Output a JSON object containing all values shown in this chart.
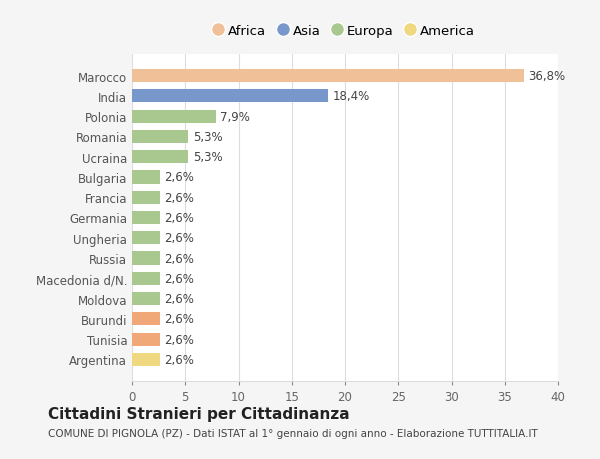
{
  "categories": [
    "Argentina",
    "Tunisia",
    "Burundi",
    "Moldova",
    "Macedonia d/N.",
    "Russia",
    "Ungheria",
    "Germania",
    "Francia",
    "Bulgaria",
    "Ucraina",
    "Romania",
    "Polonia",
    "India",
    "Marocco"
  ],
  "values": [
    2.6,
    2.6,
    2.6,
    2.6,
    2.6,
    2.6,
    2.6,
    2.6,
    2.6,
    2.6,
    5.3,
    5.3,
    7.9,
    18.4,
    36.8
  ],
  "labels": [
    "2,6%",
    "2,6%",
    "2,6%",
    "2,6%",
    "2,6%",
    "2,6%",
    "2,6%",
    "2,6%",
    "2,6%",
    "2,6%",
    "5,3%",
    "5,3%",
    "7,9%",
    "18,4%",
    "36,8%"
  ],
  "colors": [
    "#f0d880",
    "#f0a878",
    "#f0a878",
    "#a8c890",
    "#a8c890",
    "#a8c890",
    "#a8c890",
    "#a8c890",
    "#a8c890",
    "#a8c890",
    "#a8c890",
    "#a8c890",
    "#a8c890",
    "#7898cc",
    "#f0c098"
  ],
  "legend_labels": [
    "Africa",
    "Asia",
    "Europa",
    "America"
  ],
  "legend_colors": [
    "#f0c098",
    "#7898cc",
    "#a8c890",
    "#f0d880"
  ],
  "title": "Cittadini Stranieri per Cittadinanza",
  "subtitle": "COMUNE DI PIGNOLA (PZ) - Dati ISTAT al 1° gennaio di ogni anno - Elaborazione TUTTITALIA.IT",
  "xlim": [
    0,
    40
  ],
  "xticks": [
    0,
    5,
    10,
    15,
    20,
    25,
    30,
    35,
    40
  ],
  "background_color": "#f5f5f5",
  "bar_background": "#ffffff",
  "grid_color": "#dddddd"
}
